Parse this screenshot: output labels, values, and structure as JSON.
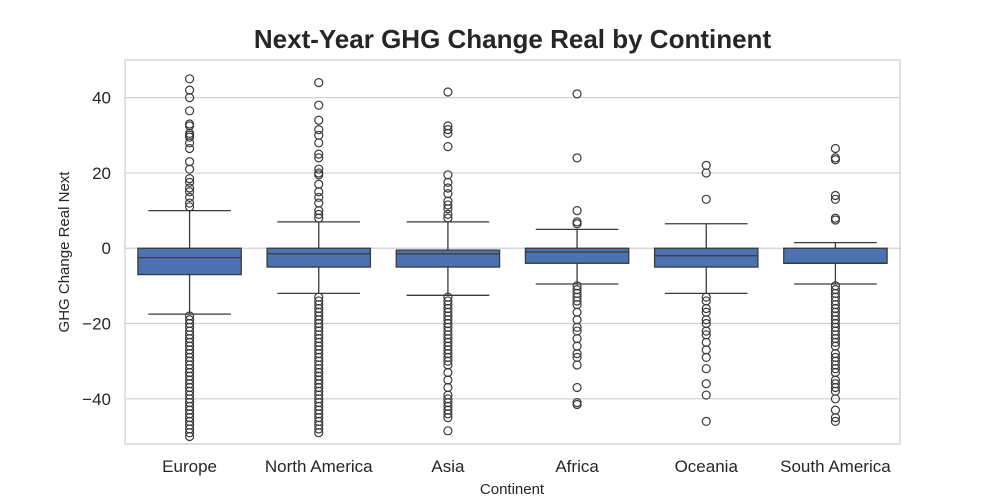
{
  "chart_data": {
    "type": "box",
    "title": "Next-Year GHG Change Real by Continent",
    "xlabel": "Continent",
    "ylabel": "GHG Change Real Next",
    "ylim": [
      -52,
      50
    ],
    "yticks": [
      -40,
      -20,
      0,
      20,
      40
    ],
    "grid": "horizontal",
    "colors": {
      "box": "#4c72b0",
      "line": "#3a3a3a",
      "grid": "#d0d0d0",
      "frame": "#cccccc"
    },
    "categories": [
      "Europe",
      "North America",
      "Asia",
      "Africa",
      "Oceania",
      "South America"
    ],
    "series": [
      {
        "category": "Europe",
        "whisker_low": -17.5,
        "q1": -7,
        "median": -2.5,
        "q3": 0,
        "whisker_high": 10,
        "outliers": [
          45,
          42,
          40,
          36.5,
          33,
          32.5,
          30.5,
          30,
          29.5,
          28,
          26.5,
          23,
          21,
          18.5,
          17.5,
          16,
          15,
          13.5,
          12,
          11,
          -18,
          -19,
          -20,
          -21,
          -22,
          -23,
          -24,
          -25,
          -26,
          -27,
          -28,
          -29,
          -30,
          -31,
          -32,
          -33,
          -34,
          -35,
          -36,
          -37,
          -38,
          -39,
          -40,
          -41,
          -42,
          -43,
          -44,
          -45,
          -46,
          -47,
          -48,
          -49,
          -50
        ]
      },
      {
        "category": "North America",
        "whisker_low": -12,
        "q1": -5,
        "median": -1.5,
        "q3": 0,
        "whisker_high": 7,
        "outliers": [
          44,
          38,
          34,
          31.5,
          30,
          28,
          25,
          24,
          21,
          20,
          19.5,
          17,
          15,
          13.5,
          12,
          10,
          9,
          8,
          -13,
          -14,
          -15,
          -16,
          -17,
          -18,
          -19,
          -20,
          -21,
          -22,
          -23,
          -24,
          -25,
          -26,
          -27,
          -28,
          -29,
          -30,
          -31,
          -32,
          -33,
          -34,
          -35,
          -36,
          -37,
          -38,
          -39,
          -40,
          -41,
          -42,
          -43,
          -44,
          -45,
          -46,
          -47,
          -48,
          -49
        ]
      },
      {
        "category": "Asia",
        "whisker_low": -12.5,
        "q1": -5,
        "median": -1.5,
        "q3": -0.5,
        "whisker_high": 7,
        "outliers": [
          41.5,
          32.5,
          31.5,
          30.5,
          27,
          19.5,
          17.5,
          16,
          14.5,
          12.5,
          11.5,
          10.5,
          9,
          8,
          -13,
          -14,
          -15,
          -16,
          -17,
          -18,
          -19,
          -20,
          -21,
          -22,
          -23,
          -24,
          -25,
          -26,
          -27,
          -28,
          -29,
          -30,
          -31,
          -33,
          -35,
          -37,
          -39,
          -40,
          -41,
          -42,
          -43,
          -44,
          -45,
          -48.5
        ]
      },
      {
        "category": "Africa",
        "whisker_low": -9.5,
        "q1": -4,
        "median": -1,
        "q3": 0,
        "whisker_high": 5,
        "outliers": [
          41,
          24,
          10,
          7,
          6.5,
          -10,
          -11,
          -12,
          -13,
          -14,
          -15,
          -17,
          -19,
          -21,
          -22,
          -24,
          -26,
          -28,
          -29,
          -31,
          -37,
          -41,
          -41.5
        ]
      },
      {
        "category": "Oceania",
        "whisker_low": -12,
        "q1": -5,
        "median": -2,
        "q3": 0,
        "whisker_high": 6.5,
        "outliers": [
          22,
          20,
          13,
          -13,
          -14,
          -16,
          -17,
          -19,
          -20,
          -22,
          -23,
          -25,
          -27,
          -29,
          -32,
          -36,
          -39,
          -46
        ]
      },
      {
        "category": "South America",
        "whisker_low": -9.5,
        "q1": -4,
        "median": -4,
        "q3": 0,
        "whisker_high": 1.5,
        "outliers": [
          26.5,
          24,
          23.5,
          14,
          13,
          8,
          7.5,
          -10,
          -11,
          -12,
          -13,
          -14,
          -15,
          -16,
          -17,
          -18,
          -19,
          -20,
          -21,
          -22,
          -23,
          -24,
          -25,
          -26,
          -28,
          -29,
          -30,
          -31,
          -32,
          -33,
          -35,
          -36,
          -37,
          -38,
          -40,
          -43,
          -45,
          -46
        ]
      }
    ]
  }
}
